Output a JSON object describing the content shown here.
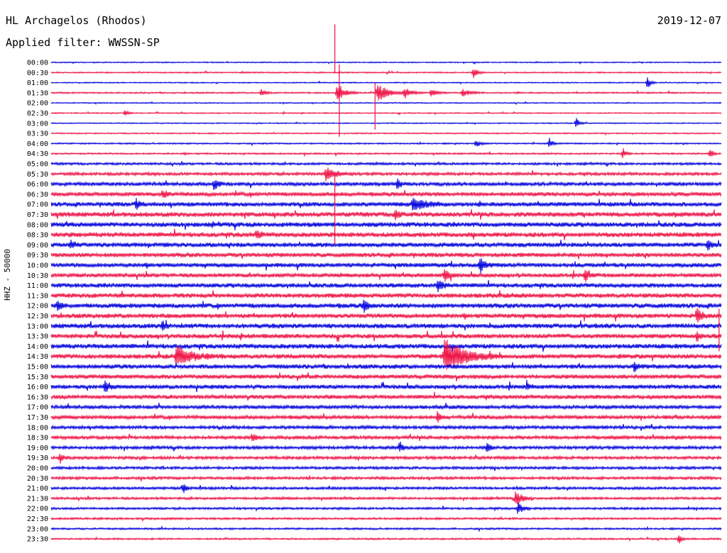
{
  "header": {
    "station": "HL Archagelos (Rhodos)",
    "date": "2019-12-07",
    "filter": "Applied filter: WWSSN-SP"
  },
  "chart_data": {
    "type": "line",
    "subtype": "helicorder",
    "ylabel": "HHZ - 50000",
    "x_range_minutes": [
      0,
      30
    ],
    "row_labels": [
      "00:00",
      "00:30",
      "01:00",
      "01:30",
      "02:00",
      "02:30",
      "03:00",
      "03:30",
      "04:00",
      "04:30",
      "05:00",
      "05:30",
      "06:00",
      "06:30",
      "07:00",
      "07:30",
      "08:00",
      "08:30",
      "09:00",
      "09:30",
      "10:00",
      "10:30",
      "11:00",
      "11:30",
      "12:00",
      "12:30",
      "13:00",
      "13:30",
      "14:00",
      "14:30",
      "15:00",
      "15:30",
      "16:00",
      "16:30",
      "17:00",
      "17:30",
      "18:00",
      "18:30",
      "19:00",
      "19:30",
      "20:00",
      "20:30",
      "21:00",
      "21:30",
      "22:00",
      "22:30",
      "23:00",
      "23:30"
    ],
    "series_colors": [
      "#0000dd",
      "#ee1144"
    ],
    "noise_level": [
      0.6,
      0.7,
      0.6,
      0.8,
      0.6,
      0.6,
      0.6,
      0.7,
      0.8,
      0.9,
      1.3,
      1.6,
      2.0,
      2.2,
      2.4,
      2.6,
      2.6,
      2.6,
      2.5,
      2.4,
      2.3,
      2.2,
      2.4,
      2.5,
      2.6,
      2.5,
      2.6,
      2.5,
      2.6,
      2.5,
      2.4,
      2.3,
      2.3,
      2.2,
      2.0,
      2.0,
      1.8,
      1.8,
      1.7,
      1.6,
      1.5,
      1.5,
      1.4,
      1.3,
      1.2,
      1.1,
      1.0,
      0.9
    ],
    "events": [
      {
        "row": 3,
        "minute": 12.8,
        "amplitude": 16,
        "duration": 1.0
      },
      {
        "row": 3,
        "minute": 14.6,
        "amplitude": 14,
        "duration": 1.4
      },
      {
        "row": 3,
        "minute": 15.8,
        "amplitude": 8,
        "duration": 1.0
      },
      {
        "row": 3,
        "minute": 17.0,
        "amplitude": 6,
        "duration": 0.8
      },
      {
        "row": 3,
        "minute": 18.4,
        "amplitude": 6,
        "duration": 1.0
      },
      {
        "row": 3,
        "minute": 9.4,
        "amplitude": 5,
        "duration": 0.6
      },
      {
        "row": 1,
        "minute": 18.9,
        "amplitude": 9,
        "duration": 0.5
      },
      {
        "row": 2,
        "minute": 26.7,
        "amplitude": 10,
        "duration": 0.4
      },
      {
        "row": 5,
        "minute": 3.3,
        "amplitude": 6,
        "duration": 0.4
      },
      {
        "row": 6,
        "minute": 23.5,
        "amplitude": 8,
        "duration": 0.4
      },
      {
        "row": 8,
        "minute": 19.0,
        "amplitude": 6,
        "duration": 0.5
      },
      {
        "row": 8,
        "minute": 22.3,
        "amplitude": 8,
        "duration": 0.4
      },
      {
        "row": 9,
        "minute": 25.6,
        "amplitude": 8,
        "duration": 0.4
      },
      {
        "row": 9,
        "minute": 29.5,
        "amplitude": 7,
        "duration": 0.4
      },
      {
        "row": 11,
        "minute": 12.3,
        "amplitude": 10,
        "duration": 1.2
      },
      {
        "row": 12,
        "minute": 7.3,
        "amplitude": 9,
        "duration": 0.5
      },
      {
        "row": 12,
        "minute": 15.5,
        "amplitude": 8,
        "duration": 0.4
      },
      {
        "row": 13,
        "minute": 5.0,
        "amplitude": 8,
        "duration": 0.4
      },
      {
        "row": 14,
        "minute": 16.2,
        "amplitude": 10,
        "duration": 1.6
      },
      {
        "row": 14,
        "minute": 3.8,
        "amplitude": 8,
        "duration": 0.4
      },
      {
        "row": 15,
        "minute": 15.4,
        "amplitude": 8,
        "duration": 0.5
      },
      {
        "row": 17,
        "minute": 9.2,
        "amplitude": 7,
        "duration": 0.4
      },
      {
        "row": 18,
        "minute": 0.9,
        "amplitude": 8,
        "duration": 0.4
      },
      {
        "row": 18,
        "minute": 29.4,
        "amplitude": 8,
        "duration": 0.4
      },
      {
        "row": 20,
        "minute": 19.2,
        "amplitude": 12,
        "duration": 0.6
      },
      {
        "row": 21,
        "minute": 17.6,
        "amplitude": 12,
        "duration": 0.6
      },
      {
        "row": 21,
        "minute": 23.9,
        "amplitude": 10,
        "duration": 0.6
      },
      {
        "row": 22,
        "minute": 17.3,
        "amplitude": 10,
        "duration": 0.6
      },
      {
        "row": 24,
        "minute": 0.3,
        "amplitude": 8,
        "duration": 0.4
      },
      {
        "row": 24,
        "minute": 14.0,
        "amplitude": 10,
        "duration": 0.5
      },
      {
        "row": 25,
        "minute": 28.9,
        "amplitude": 12,
        "duration": 0.6
      },
      {
        "row": 26,
        "minute": 5.0,
        "amplitude": 8,
        "duration": 0.4
      },
      {
        "row": 27,
        "minute": 28.9,
        "amplitude": 8,
        "duration": 0.4
      },
      {
        "row": 29,
        "minute": 5.6,
        "amplitude": 14,
        "duration": 2.2
      },
      {
        "row": 29,
        "minute": 17.6,
        "amplitude": 26,
        "duration": 2.6
      },
      {
        "row": 30,
        "minute": 26.1,
        "amplitude": 8,
        "duration": 0.5
      },
      {
        "row": 32,
        "minute": 2.4,
        "amplitude": 10,
        "duration": 0.5
      },
      {
        "row": 32,
        "minute": 21.3,
        "amplitude": 8,
        "duration": 0.4
      },
      {
        "row": 35,
        "minute": 17.3,
        "amplitude": 10,
        "duration": 0.4
      },
      {
        "row": 37,
        "minute": 9.0,
        "amplitude": 7,
        "duration": 0.4
      },
      {
        "row": 38,
        "minute": 15.6,
        "amplitude": 10,
        "duration": 0.4
      },
      {
        "row": 38,
        "minute": 19.5,
        "amplitude": 9,
        "duration": 0.4
      },
      {
        "row": 39,
        "minute": 0.4,
        "amplitude": 8,
        "duration": 0.4
      },
      {
        "row": 42,
        "minute": 5.9,
        "amplitude": 9,
        "duration": 0.4
      },
      {
        "row": 43,
        "minute": 20.8,
        "amplitude": 12,
        "duration": 0.8
      },
      {
        "row": 44,
        "minute": 20.9,
        "amplitude": 10,
        "duration": 0.6
      },
      {
        "row": 47,
        "minute": 28.1,
        "amplitude": 7,
        "duration": 0.4
      }
    ],
    "spikes": [
      {
        "row": 1,
        "minute": 12.7,
        "up": 68,
        "down": 0
      },
      {
        "row": 3,
        "minute": 12.9,
        "up": 40,
        "down": 62
      },
      {
        "row": 3,
        "minute": 14.5,
        "up": 14,
        "down": 52
      },
      {
        "row": 11,
        "minute": 12.7,
        "up": 0,
        "down": 100
      },
      {
        "row": 25,
        "minute": 29.9,
        "up": 10,
        "down": 50
      }
    ]
  }
}
